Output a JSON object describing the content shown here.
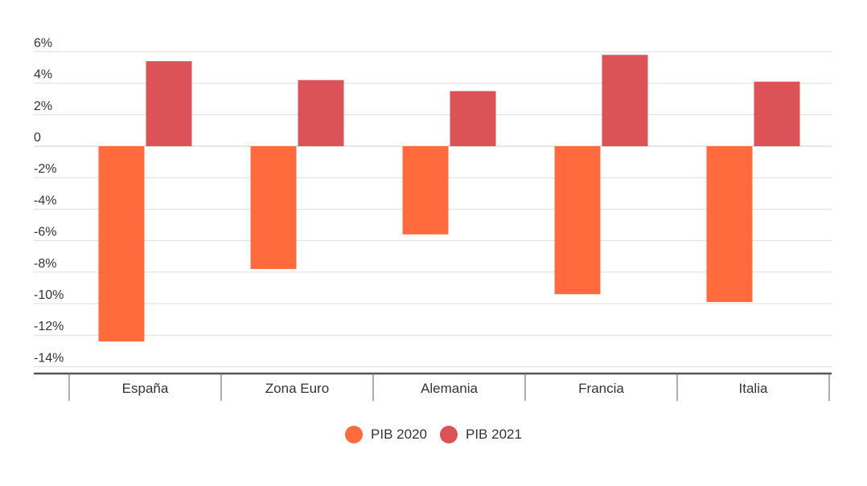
{
  "chart_data": {
    "type": "bar",
    "categories": [
      "España",
      "Zona Euro",
      "Alemania",
      "Francia",
      "Italia"
    ],
    "series": [
      {
        "name": "PIB 2020",
        "color": "#FF6B3D",
        "values": [
          -12.4,
          -7.8,
          -5.6,
          -9.4,
          -9.9
        ]
      },
      {
        "name": "PIB 2021",
        "color": "#DB5257",
        "values": [
          5.4,
          4.2,
          3.5,
          5.8,
          4.1
        ]
      }
    ],
    "yticks": [
      {
        "value": 6,
        "label": "6%"
      },
      {
        "value": 4,
        "label": "4%"
      },
      {
        "value": 2,
        "label": "2%"
      },
      {
        "value": 0,
        "label": "0"
      },
      {
        "value": -2,
        "label": "-2%"
      },
      {
        "value": -4,
        "label": "-4%"
      },
      {
        "value": -6,
        "label": "-6%"
      },
      {
        "value": -8,
        "label": "-8%"
      },
      {
        "value": -10,
        "label": "-10%"
      },
      {
        "value": -12,
        "label": "-12%"
      },
      {
        "value": -14,
        "label": "-14%"
      }
    ],
    "ylim": [
      -14,
      6
    ],
    "grid": true,
    "legend_position": "bottom-center",
    "title": "",
    "xlabel": "",
    "ylabel": ""
  }
}
